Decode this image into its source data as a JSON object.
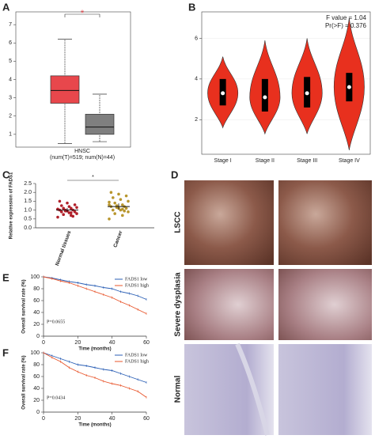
{
  "panels": [
    "A",
    "B",
    "C",
    "D",
    "E",
    "F"
  ],
  "histology": {
    "rows": [
      "LSCC",
      "Severe dysplasia",
      "Normal"
    ]
  },
  "chart_data": [
    {
      "type": "box",
      "xlabel": "HNSC",
      "note": "(num(T)=519; num(N)=44)",
      "annotation": "*",
      "ylim": [
        0.3,
        7.7
      ],
      "yticks": [
        1,
        2,
        3,
        4,
        5,
        6,
        7
      ],
      "boxes": [
        {
          "color": "#e8474c",
          "min": 0.5,
          "q1": 2.7,
          "median": 3.4,
          "q3": 4.2,
          "max": 6.2
        },
        {
          "color": "#7f7f7f",
          "min": 0.6,
          "q1": 1.0,
          "median": 1.4,
          "q3": 2.1,
          "max": 3.2
        }
      ]
    },
    {
      "type": "violin",
      "color": "#e8301e",
      "categories": [
        "Stage I",
        "Stage II",
        "Stage III",
        "Stage IV"
      ],
      "annotations": [
        "F value = 1.04",
        "Pr(>F) = 0.376"
      ],
      "ylim": [
        0.3,
        7.3
      ],
      "yticks": [
        2,
        4,
        6
      ],
      "boxes": [
        {
          "min": 1.6,
          "q1": 2.7,
          "median": 3.3,
          "q3": 4.0,
          "max": 5.1
        },
        {
          "min": 1.3,
          "q1": 2.4,
          "median": 3.1,
          "q3": 4.0,
          "max": 5.9
        },
        {
          "min": 1.3,
          "q1": 2.6,
          "median": 3.3,
          "q3": 4.1,
          "max": 6.0
        },
        {
          "min": 0.5,
          "q1": 2.9,
          "median": 3.6,
          "q3": 4.3,
          "max": 7.0
        }
      ]
    },
    {
      "type": "dot",
      "ylabel": "Relative expression of FADS1",
      "annotation": "*",
      "categories": [
        "Normal tissues",
        "Cancer"
      ],
      "ylim": [
        0,
        2.5
      ],
      "yticks": [
        {
          "value": 0,
          "label": "0.0"
        },
        0.5,
        {
          "value": 1,
          "label": "1.0"
        },
        1.5,
        {
          "value": 2,
          "label": "2.0"
        },
        2.5
      ],
      "groups": [
        {
          "color": "#b0202a",
          "mean": 1.0,
          "error": 0.12,
          "points": [
            0.6,
            0.7,
            0.75,
            0.8,
            0.85,
            0.9,
            0.9,
            0.95,
            1.0,
            1.0,
            1.0,
            1.05,
            1.1,
            1.1,
            1.15,
            1.2,
            1.25,
            1.3,
            1.4,
            1.5,
            0.65,
            0.95,
            1.05,
            0.85
          ]
        },
        {
          "color": "#b8962e",
          "mean": 1.2,
          "error": 0.18,
          "points": [
            0.5,
            0.7,
            0.8,
            0.9,
            1.0,
            1.0,
            1.1,
            1.1,
            1.2,
            1.2,
            1.25,
            1.3,
            1.3,
            1.4,
            1.5,
            1.6,
            1.7,
            1.8,
            1.9,
            2.0,
            0.95,
            1.15,
            1.45,
            1.05
          ]
        }
      ]
    },
    {
      "type": "km",
      "xlabel": "Time (months)",
      "ylabel": "Overall survival rate (%)",
      "annotation": "P=0.0655",
      "legend": "upper right",
      "x": [
        0,
        5,
        10,
        15,
        20,
        25,
        30,
        35,
        40,
        45,
        50,
        55,
        60
      ],
      "xlim": [
        0,
        60
      ],
      "xticks": [
        0,
        20,
        40,
        60
      ],
      "ylim": [
        0,
        100
      ],
      "yticks": [
        0,
        20,
        40,
        60,
        80,
        100
      ],
      "series": [
        {
          "name": "FADS1 low",
          "color": "#2b5fb5",
          "values": [
            100,
            98,
            95,
            92,
            90,
            87,
            85,
            82,
            80,
            75,
            72,
            68,
            62
          ]
        },
        {
          "name": "FADS1 high",
          "color": "#e8542a",
          "values": [
            100,
            97,
            93,
            90,
            85,
            80,
            75,
            70,
            65,
            58,
            52,
            45,
            38
          ]
        }
      ]
    },
    {
      "type": "km",
      "xlabel": "Time (months)",
      "ylabel": "Overall survival rate (%)",
      "annotation": "P=0.0434",
      "legend": "upper right",
      "x": [
        0,
        5,
        10,
        15,
        20,
        25,
        30,
        35,
        40,
        45,
        50,
        55,
        60
      ],
      "xlim": [
        0,
        60
      ],
      "xticks": [
        0,
        20,
        40,
        60
      ],
      "ylim": [
        0,
        100
      ],
      "yticks": [
        0,
        20,
        40,
        60,
        80,
        100
      ],
      "series": [
        {
          "name": "FADS1 low",
          "color": "#2b5fb5",
          "values": [
            100,
            95,
            90,
            85,
            80,
            78,
            75,
            72,
            70,
            65,
            60,
            55,
            50
          ]
        },
        {
          "name": "FADS1 high",
          "color": "#e8542a",
          "values": [
            100,
            92,
            85,
            75,
            68,
            62,
            58,
            52,
            48,
            45,
            40,
            35,
            25
          ]
        }
      ]
    }
  ]
}
